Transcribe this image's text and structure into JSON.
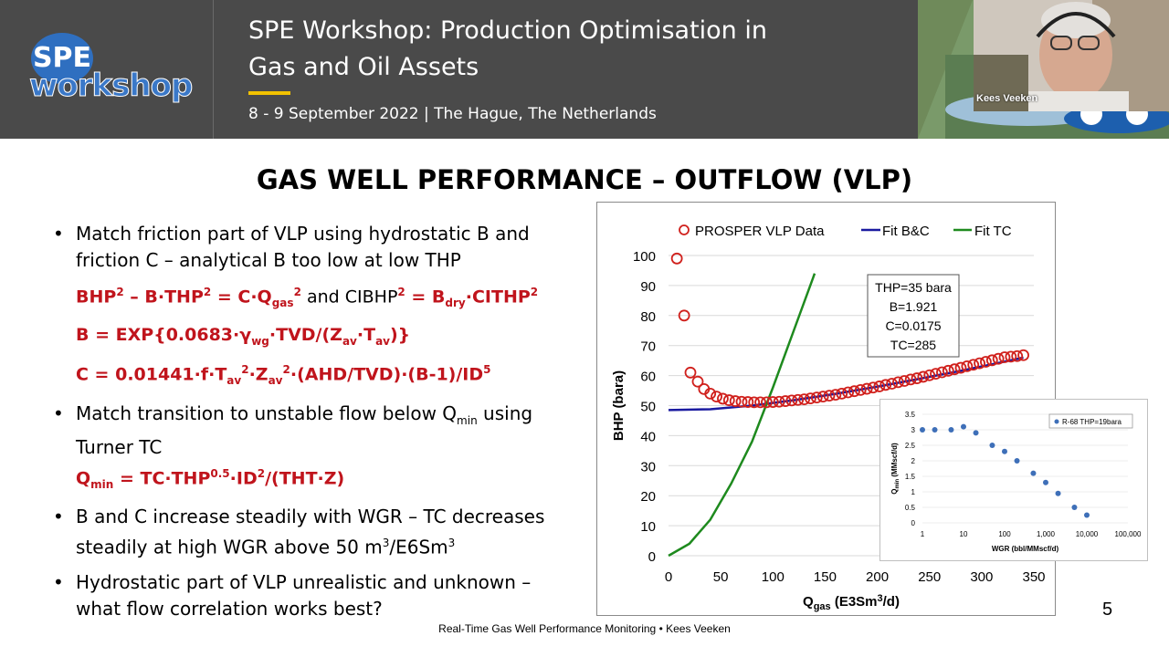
{
  "banner": {
    "logo_top": "SPE",
    "logo_bottom": "workshop",
    "title_line1": "SPE Workshop: Production Optimisation in",
    "title_line2": "Gas and Oil Assets",
    "date": "8 - 9 September 2022 | The Hague, The Netherlands",
    "accent_color": "#f2c200"
  },
  "webcam": {
    "name": "Kees Veeken"
  },
  "slide": {
    "title": "GAS WELL PERFORMANCE – OUTFLOW (VLP)",
    "bullet1_l1": "Match friction part of VLP using hydrostatic B and",
    "bullet1_l2": "friction C – analytical B too low at low THP",
    "bullet2_l1a": "Match transition to unstable flow below Q",
    "bullet2_l1b": "min",
    "bullet2_l1c": " using",
    "bullet2_l2": "Turner TC",
    "bullet3_l1": "B and C increase steadily with WGR – TC decreases",
    "bullet3_l2a": "steadily at high WGR above 50 m",
    "bullet3_l2b": "3",
    "bullet3_l2c": "/E6Sm",
    "bullet3_l2d": "3",
    "bullet4_l1": "Hydrostatic part of VLP unrealistic and unknown –",
    "bullet4_l2": "what flow correlation works best?",
    "bullet_char": "•",
    "footer": "Real-Time Gas Well Performance Monitoring • Kees Veeken",
    "page": "5"
  },
  "equations": {
    "eq1": [
      "BHP",
      "2",
      " – B·THP",
      "2",
      " = C·Q",
      "gas",
      "2",
      " and CIBHP",
      "2",
      " = B",
      "dry",
      "·CITHP",
      "2"
    ],
    "eq2": [
      "B = EXP{0.0683·γ",
      "wg",
      "·TVD/(Z",
      "av",
      "·T",
      "av",
      ")}"
    ],
    "eq3": [
      "C = 0.01441·f·T",
      "av",
      "2",
      "·Z",
      "av",
      "2",
      "·(AHD/TVD)·(B-1)/ID",
      "5"
    ],
    "eq4": [
      "Q",
      "min",
      " = TC·THP",
      "0.5",
      "·ID",
      "2",
      "/(THT·Z)"
    ]
  },
  "chart_data": [
    {
      "type": "scatter",
      "xlabel_main": "Q",
      "xlabel_sub": "gas",
      "xlabel_rest": " (E3Sm",
      "xlabel_sup": "3",
      "xlabel_end": "/d)",
      "ylabel": "BHP (bara)",
      "xlim": [
        0,
        350
      ],
      "ylim": [
        0,
        100
      ],
      "xticks": [
        0,
        50,
        100,
        150,
        200,
        250,
        300,
        350
      ],
      "yticks": [
        0,
        10,
        20,
        30,
        40,
        50,
        60,
        70,
        80,
        90,
        100
      ],
      "legend": [
        "PROSPER VLP Data",
        "Fit B&C",
        "Fit TC"
      ],
      "legend_position": "top",
      "colors": {
        "data": "#d0201c",
        "fit_bc": "#1a1aa0",
        "fit_tc": "#1e8a1e"
      },
      "annotation": [
        "THP=35 bara",
        "B=1.921",
        "C=0.0175",
        "TC=285"
      ],
      "series": [
        {
          "name": "PROSPER VLP Data",
          "x": [
            8,
            15,
            21,
            28,
            34,
            40,
            46,
            52,
            58,
            64,
            70,
            76,
            82,
            88,
            94,
            100,
            106,
            112,
            118,
            124,
            130,
            136,
            142,
            148,
            154,
            160,
            166,
            172,
            178,
            184,
            190,
            196,
            202,
            208,
            214,
            220,
            226,
            232,
            238,
            244,
            250,
            256,
            262,
            268,
            274,
            280,
            286,
            292,
            298,
            304,
            310,
            316,
            322,
            328,
            334,
            340
          ],
          "y": [
            99,
            80,
            61,
            58,
            55.5,
            54,
            53,
            52.3,
            51.8,
            51.5,
            51.3,
            51.2,
            51.1,
            51.1,
            51.1,
            51.2,
            51.3,
            51.5,
            51.7,
            51.9,
            52.1,
            52.4,
            52.7,
            53.0,
            53.3,
            53.6,
            54.0,
            54.4,
            54.8,
            55.2,
            55.6,
            56.0,
            56.4,
            56.9,
            57.3,
            57.8,
            58.2,
            58.7,
            59.1,
            59.6,
            60.1,
            60.6,
            61.1,
            61.6,
            62.1,
            62.6,
            63.1,
            63.6,
            64.1,
            64.6,
            65.1,
            65.6,
            66.1,
            66.3,
            66.5,
            66.8
          ]
        },
        {
          "name": "Fit B&C",
          "x": [
            0,
            40,
            80,
            120,
            160,
            200,
            240,
            280,
            320,
            340
          ],
          "y": [
            48.5,
            48.8,
            50.0,
            51.8,
            53.9,
            56.3,
            58.9,
            61.6,
            64.5,
            66.0
          ]
        },
        {
          "name": "Fit TC",
          "x": [
            0,
            20,
            40,
            60,
            80,
            100,
            120,
            140
          ],
          "y": [
            0,
            4,
            12,
            24,
            38,
            56,
            75,
            94
          ]
        }
      ]
    },
    {
      "type": "scatter",
      "xscale": "log",
      "xlabel": "WGR (bbl/MMscf/d)",
      "ylabel_main": "Q",
      "ylabel_sub": "min",
      "ylabel_rest": " (MMscf/d)",
      "xlim": [
        1,
        100000
      ],
      "ylim": [
        0,
        3.5
      ],
      "xticks": [
        1,
        10,
        100,
        1000,
        10000,
        100000
      ],
      "xtick_labels": [
        "1",
        "10",
        "100",
        "1,000",
        "10,000",
        "100,000"
      ],
      "yticks": [
        0,
        0.5,
        1,
        1.5,
        2,
        2.5,
        3,
        3.5
      ],
      "legend": [
        "R-68 THP=19bara"
      ],
      "legend_position": "top-right",
      "colors": {
        "marker": "#3e6fb8"
      },
      "series": [
        {
          "name": "R-68 THP=19bara",
          "x": [
            1,
            2,
            5,
            10,
            20,
            50,
            100,
            200,
            500,
            1000,
            2000,
            5000,
            10000
          ],
          "y": [
            3.0,
            3.0,
            3.0,
            3.1,
            2.9,
            2.5,
            2.3,
            2.0,
            1.6,
            1.3,
            0.95,
            0.5,
            0.25
          ]
        }
      ]
    }
  ]
}
